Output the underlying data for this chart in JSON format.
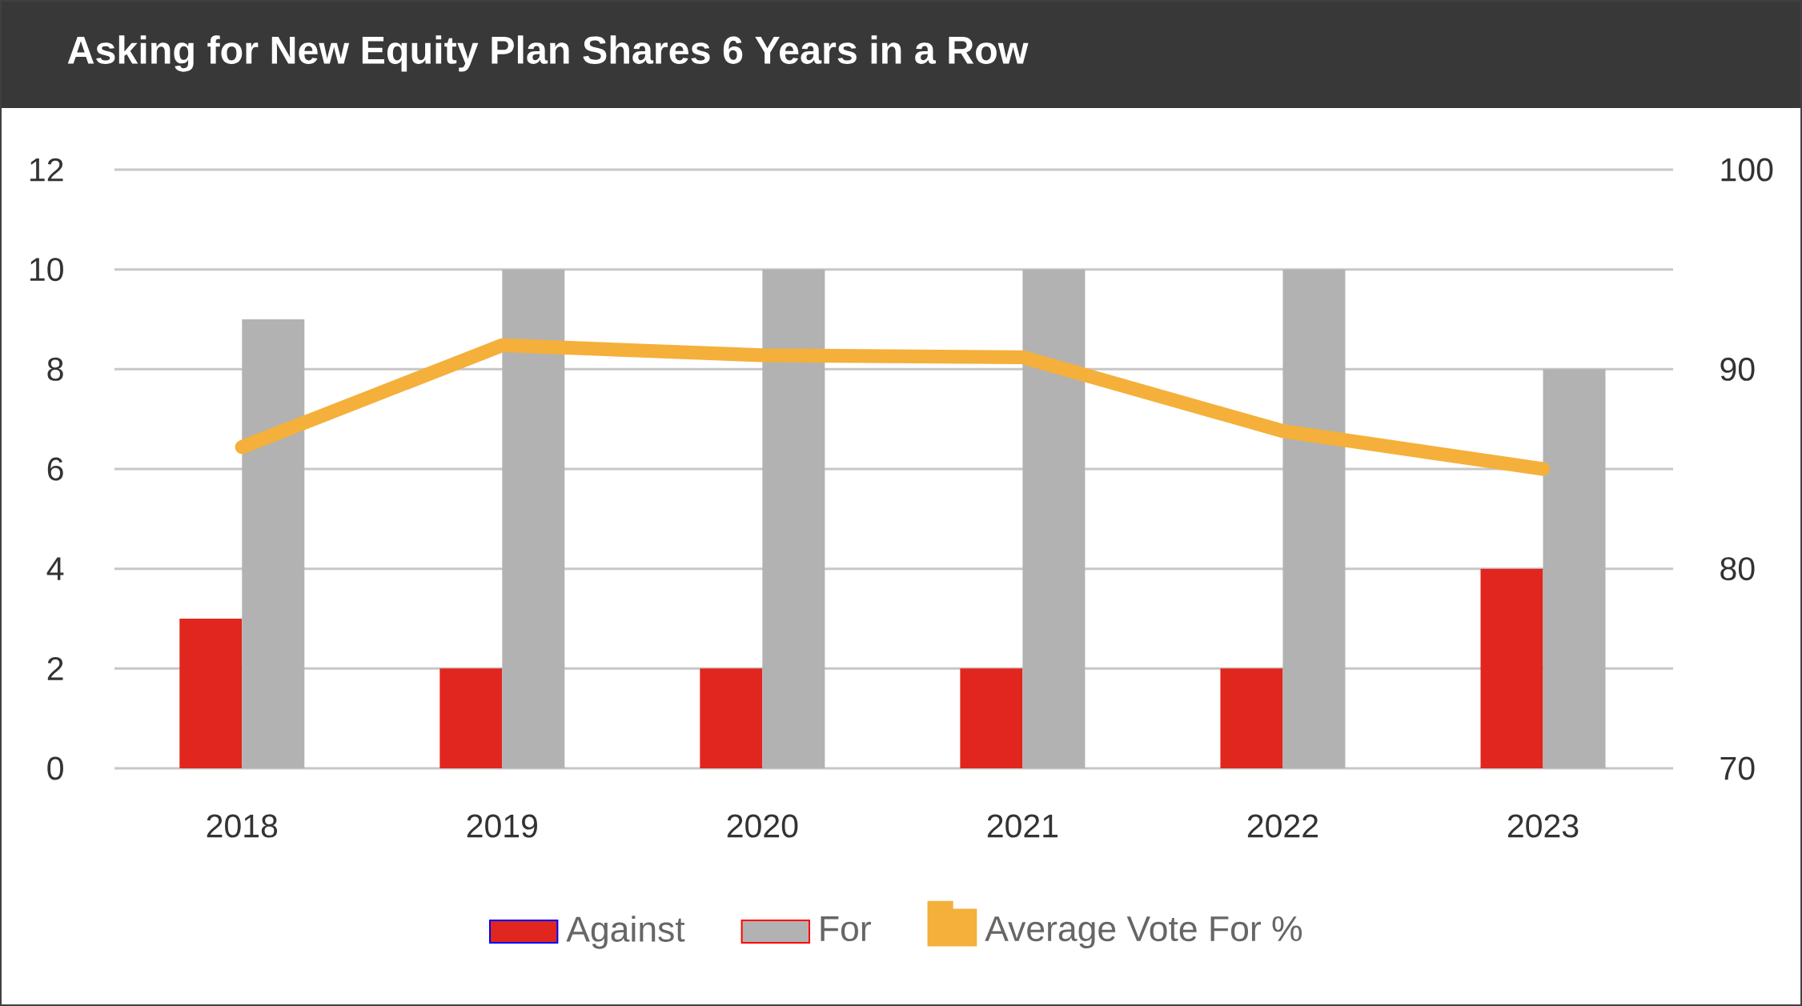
{
  "chart_data": {
    "type": "bar",
    "title": "Asking for New Equity Plan Shares 6 Years in a Row",
    "categories": [
      "2018",
      "2019",
      "2020",
      "2021",
      "2022",
      "2023"
    ],
    "series": [
      {
        "name": "Against",
        "color": "#e0261e",
        "values": [
          3,
          2,
          2,
          2,
          2,
          4
        ]
      },
      {
        "name": "For",
        "color": "#b2b2b2",
        "values": [
          9,
          10,
          10,
          10,
          10,
          8
        ]
      },
      {
        "name": "Average Vote For %",
        "color": "#f4b03a",
        "type": "line",
        "axis": "y2",
        "values": [
          86.1,
          91.2,
          90.7,
          90.6,
          86.9,
          85.0
        ]
      }
    ],
    "ylim": [
      0,
      12
    ],
    "yticks": [
      0,
      2,
      4,
      6,
      8,
      10,
      12
    ],
    "y2lim": [
      70,
      100
    ],
    "y2ticks": [
      70,
      80,
      90,
      100
    ],
    "grid": "y",
    "legend": "bottom"
  }
}
